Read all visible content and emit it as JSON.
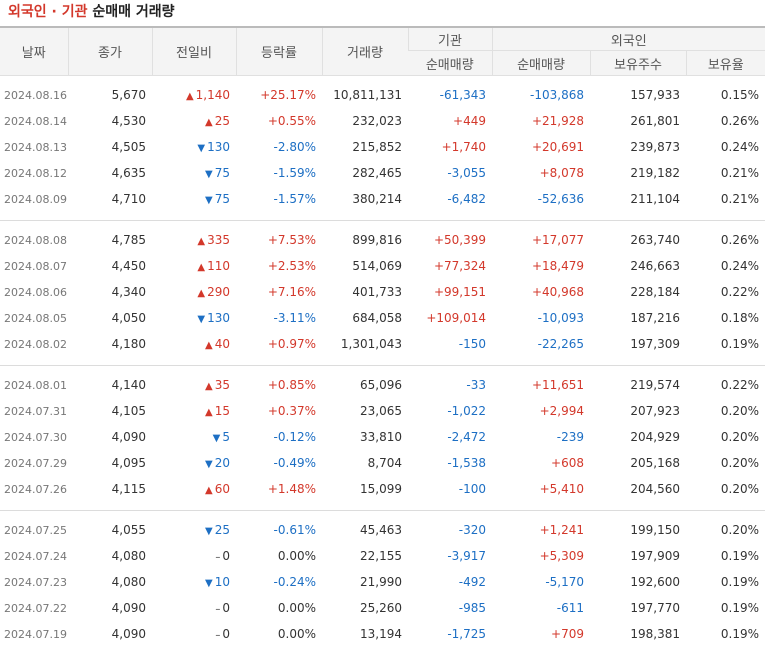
{
  "title": {
    "part1": "외국인 · 기관",
    "part2": "순매매 거래량"
  },
  "headers": {
    "date": "날짜",
    "close": "종가",
    "change": "전일비",
    "rate": "등락률",
    "volume": "거래량",
    "institution": "기관",
    "foreign": "외국인",
    "inst_net": "순매매량",
    "foreign_net": "순매매량",
    "holdings": "보유주수",
    "ratio": "보유율"
  },
  "groups": [
    [
      {
        "date": "2024.08.16",
        "close": "5,670",
        "dir": "up",
        "change": "1,140",
        "rate": "+25.17%",
        "volume": "10,811,131",
        "inst": "-61,343",
        "frgn": "-103,868",
        "hold": "157,933",
        "ratio": "0.15%"
      },
      {
        "date": "2024.08.14",
        "close": "4,530",
        "dir": "up",
        "change": "25",
        "rate": "+0.55%",
        "volume": "232,023",
        "inst": "+449",
        "frgn": "+21,928",
        "hold": "261,801",
        "ratio": "0.26%"
      },
      {
        "date": "2024.08.13",
        "close": "4,505",
        "dir": "down",
        "change": "130",
        "rate": "-2.80%",
        "volume": "215,852",
        "inst": "+1,740",
        "frgn": "+20,691",
        "hold": "239,873",
        "ratio": "0.24%"
      },
      {
        "date": "2024.08.12",
        "close": "4,635",
        "dir": "down",
        "change": "75",
        "rate": "-1.59%",
        "volume": "282,465",
        "inst": "-3,055",
        "frgn": "+8,078",
        "hold": "219,182",
        "ratio": "0.21%"
      },
      {
        "date": "2024.08.09",
        "close": "4,710",
        "dir": "down",
        "change": "75",
        "rate": "-1.57%",
        "volume": "380,214",
        "inst": "-6,482",
        "frgn": "-52,636",
        "hold": "211,104",
        "ratio": "0.21%"
      }
    ],
    [
      {
        "date": "2024.08.08",
        "close": "4,785",
        "dir": "up",
        "change": "335",
        "rate": "+7.53%",
        "volume": "899,816",
        "inst": "+50,399",
        "frgn": "+17,077",
        "hold": "263,740",
        "ratio": "0.26%"
      },
      {
        "date": "2024.08.07",
        "close": "4,450",
        "dir": "up",
        "change": "110",
        "rate": "+2.53%",
        "volume": "514,069",
        "inst": "+77,324",
        "frgn": "+18,479",
        "hold": "246,663",
        "ratio": "0.24%"
      },
      {
        "date": "2024.08.06",
        "close": "4,340",
        "dir": "up",
        "change": "290",
        "rate": "+7.16%",
        "volume": "401,733",
        "inst": "+99,151",
        "frgn": "+40,968",
        "hold": "228,184",
        "ratio": "0.22%"
      },
      {
        "date": "2024.08.05",
        "close": "4,050",
        "dir": "down",
        "change": "130",
        "rate": "-3.11%",
        "volume": "684,058",
        "inst": "+109,014",
        "frgn": "-10,093",
        "hold": "187,216",
        "ratio": "0.18%"
      },
      {
        "date": "2024.08.02",
        "close": "4,180",
        "dir": "up",
        "change": "40",
        "rate": "+0.97%",
        "volume": "1,301,043",
        "inst": "-150",
        "frgn": "-22,265",
        "hold": "197,309",
        "ratio": "0.19%"
      }
    ],
    [
      {
        "date": "2024.08.01",
        "close": "4,140",
        "dir": "up",
        "change": "35",
        "rate": "+0.85%",
        "volume": "65,096",
        "inst": "-33",
        "frgn": "+11,651",
        "hold": "219,574",
        "ratio": "0.22%"
      },
      {
        "date": "2024.07.31",
        "close": "4,105",
        "dir": "up",
        "change": "15",
        "rate": "+0.37%",
        "volume": "23,065",
        "inst": "-1,022",
        "frgn": "+2,994",
        "hold": "207,923",
        "ratio": "0.20%"
      },
      {
        "date": "2024.07.30",
        "close": "4,090",
        "dir": "down",
        "change": "5",
        "rate": "-0.12%",
        "volume": "33,810",
        "inst": "-2,472",
        "frgn": "-239",
        "hold": "204,929",
        "ratio": "0.20%"
      },
      {
        "date": "2024.07.29",
        "close": "4,095",
        "dir": "down",
        "change": "20",
        "rate": "-0.49%",
        "volume": "8,704",
        "inst": "-1,538",
        "frgn": "+608",
        "hold": "205,168",
        "ratio": "0.20%"
      },
      {
        "date": "2024.07.26",
        "close": "4,115",
        "dir": "up",
        "change": "60",
        "rate": "+1.48%",
        "volume": "15,099",
        "inst": "-100",
        "frgn": "+5,410",
        "hold": "204,560",
        "ratio": "0.20%"
      }
    ],
    [
      {
        "date": "2024.07.25",
        "close": "4,055",
        "dir": "down",
        "change": "25",
        "rate": "-0.61%",
        "volume": "45,463",
        "inst": "-320",
        "frgn": "+1,241",
        "hold": "199,150",
        "ratio": "0.20%"
      },
      {
        "date": "2024.07.24",
        "close": "4,080",
        "dir": "flat",
        "change": "0",
        "rate": "0.00%",
        "volume": "22,155",
        "inst": "-3,917",
        "frgn": "+5,309",
        "hold": "197,909",
        "ratio": "0.19%"
      },
      {
        "date": "2024.07.23",
        "close": "4,080",
        "dir": "down",
        "change": "10",
        "rate": "-0.24%",
        "volume": "21,990",
        "inst": "-492",
        "frgn": "-5,170",
        "hold": "192,600",
        "ratio": "0.19%"
      },
      {
        "date": "2024.07.22",
        "close": "4,090",
        "dir": "flat",
        "change": "0",
        "rate": "0.00%",
        "volume": "25,260",
        "inst": "-985",
        "frgn": "-611",
        "hold": "197,770",
        "ratio": "0.19%"
      },
      {
        "date": "2024.07.19",
        "close": "4,090",
        "dir": "flat",
        "change": "0",
        "rate": "0.00%",
        "volume": "13,194",
        "inst": "-1,725",
        "frgn": "+709",
        "hold": "198,381",
        "ratio": "0.19%"
      }
    ]
  ],
  "colors": {
    "up": "#d3382b",
    "down": "#1d6fc4"
  }
}
